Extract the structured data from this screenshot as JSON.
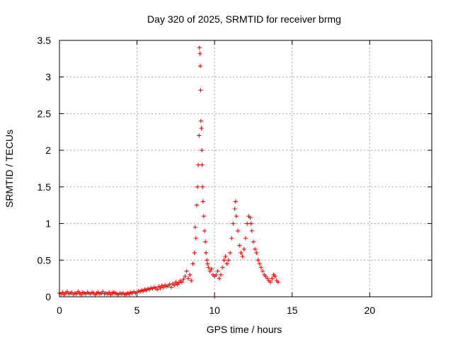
{
  "chart_data": {
    "type": "scatter",
    "title": "Day 320 of 2025, SRMTID for receiver brmg",
    "xlabel": "GPS time / hours",
    "ylabel": "SRMTID / TECUs",
    "xlim": [
      0,
      24
    ],
    "ylim": [
      0,
      3.5
    ],
    "x_ticks": [
      0,
      5,
      10,
      15,
      20
    ],
    "x_tick_labels": [
      "0",
      "5",
      "10",
      "15",
      "20"
    ],
    "y_ticks": [
      0,
      0.5,
      1,
      1.5,
      2,
      2.5,
      3,
      3.5
    ],
    "y_tick_labels": [
      "0",
      "0.5",
      "1",
      "1.5",
      "2",
      "2.5",
      "3",
      "3.5"
    ],
    "grid": true,
    "marker": "+",
    "color": "#ff0000",
    "series": [
      {
        "name": "SRMTID",
        "points": [
          [
            0.0,
            0.05
          ],
          [
            0.1,
            0.04
          ],
          [
            0.2,
            0.06
          ],
          [
            0.3,
            0.03
          ],
          [
            0.4,
            0.05
          ],
          [
            0.5,
            0.07
          ],
          [
            0.6,
            0.04
          ],
          [
            0.7,
            0.05
          ],
          [
            0.8,
            0.06
          ],
          [
            0.9,
            0.03
          ],
          [
            1.0,
            0.05
          ],
          [
            1.1,
            0.04
          ],
          [
            1.2,
            0.07
          ],
          [
            1.3,
            0.05
          ],
          [
            1.4,
            0.03
          ],
          [
            1.5,
            0.06
          ],
          [
            1.6,
            0.05
          ],
          [
            1.7,
            0.04
          ],
          [
            1.8,
            0.06
          ],
          [
            1.9,
            0.05
          ],
          [
            2.0,
            0.04
          ],
          [
            2.1,
            0.06
          ],
          [
            2.2,
            0.05
          ],
          [
            2.3,
            0.03
          ],
          [
            2.4,
            0.05
          ],
          [
            2.5,
            0.06
          ],
          [
            2.6,
            0.04
          ],
          [
            2.7,
            0.05
          ],
          [
            2.8,
            0.07
          ],
          [
            2.9,
            0.04
          ],
          [
            3.0,
            0.05
          ],
          [
            3.1,
            0.04
          ],
          [
            3.2,
            0.06
          ],
          [
            3.3,
            0.03
          ],
          [
            3.4,
            0.05
          ],
          [
            3.5,
            0.06
          ],
          [
            3.6,
            0.05
          ],
          [
            3.7,
            0.04
          ],
          [
            3.8,
            0.03
          ],
          [
            3.9,
            0.05
          ],
          [
            4.0,
            0.04
          ],
          [
            4.1,
            0.05
          ],
          [
            4.2,
            0.03
          ],
          [
            4.3,
            0.04
          ],
          [
            4.4,
            0.05
          ],
          [
            4.5,
            0.04
          ],
          [
            4.6,
            0.06
          ],
          [
            4.7,
            0.05
          ],
          [
            4.8,
            0.07
          ],
          [
            4.9,
            0.05
          ],
          [
            5.0,
            0.06
          ],
          [
            5.1,
            0.08
          ],
          [
            5.2,
            0.07
          ],
          [
            5.3,
            0.09
          ],
          [
            5.4,
            0.08
          ],
          [
            5.5,
            0.1
          ],
          [
            5.6,
            0.09
          ],
          [
            5.7,
            0.11
          ],
          [
            5.8,
            0.1
          ],
          [
            5.9,
            0.12
          ],
          [
            6.0,
            0.11
          ],
          [
            6.1,
            0.13
          ],
          [
            6.2,
            0.12
          ],
          [
            6.3,
            0.1
          ],
          [
            6.4,
            0.14
          ],
          [
            6.5,
            0.12
          ],
          [
            6.6,
            0.15
          ],
          [
            6.7,
            0.13
          ],
          [
            6.8,
            0.16
          ],
          [
            6.9,
            0.14
          ],
          [
            7.0,
            0.15
          ],
          [
            7.1,
            0.17
          ],
          [
            7.2,
            0.13
          ],
          [
            7.3,
            0.18
          ],
          [
            7.4,
            0.16
          ],
          [
            7.5,
            0.2
          ],
          [
            7.6,
            0.17
          ],
          [
            7.7,
            0.19
          ],
          [
            7.8,
            0.22
          ],
          [
            7.9,
            0.2
          ],
          [
            8.0,
            0.24
          ],
          [
            8.1,
            0.28
          ],
          [
            8.2,
            0.35
          ],
          [
            8.3,
            0.25
          ],
          [
            8.4,
            0.3
          ],
          [
            8.5,
            0.22
          ],
          [
            8.6,
            0.45
          ],
          [
            8.7,
            0.6
          ],
          [
            8.75,
            0.95
          ],
          [
            8.8,
            0.8
          ],
          [
            8.85,
            1.25
          ],
          [
            8.9,
            1.5
          ],
          [
            8.95,
            1.8
          ],
          [
            9.0,
            2.2
          ],
          [
            9.02,
            3.4
          ],
          [
            9.05,
            3.32
          ],
          [
            9.08,
            3.15
          ],
          [
            9.1,
            2.82
          ],
          [
            9.12,
            2.4
          ],
          [
            9.15,
            2.3
          ],
          [
            9.18,
            2.0
          ],
          [
            9.2,
            1.8
          ],
          [
            9.22,
            1.5
          ],
          [
            9.25,
            1.3
          ],
          [
            9.3,
            1.1
          ],
          [
            9.35,
            0.9
          ],
          [
            9.4,
            0.75
          ],
          [
            9.45,
            0.6
          ],
          [
            9.5,
            0.5
          ],
          [
            9.55,
            0.45
          ],
          [
            9.6,
            0.4
          ],
          [
            9.7,
            0.35
          ],
          [
            9.8,
            0.38
          ],
          [
            9.9,
            0.3
          ],
          [
            10.0,
            0.28
          ],
          [
            10.0,
            0.0
          ],
          [
            10.1,
            0.3
          ],
          [
            10.2,
            0.35
          ],
          [
            10.3,
            0.25
          ],
          [
            10.4,
            0.3
          ],
          [
            10.5,
            0.4
          ],
          [
            10.6,
            0.5
          ],
          [
            10.7,
            0.55
          ],
          [
            10.8,
            0.45
          ],
          [
            10.9,
            0.5
          ],
          [
            11.0,
            0.6
          ],
          [
            11.1,
            0.8
          ],
          [
            11.2,
            1.0
          ],
          [
            11.3,
            1.2
          ],
          [
            11.35,
            1.3
          ],
          [
            11.4,
            1.1
          ],
          [
            11.5,
            0.9
          ],
          [
            11.6,
            0.7
          ],
          [
            11.7,
            0.6
          ],
          [
            11.8,
            0.55
          ],
          [
            11.9,
            0.65
          ],
          [
            12.0,
            0.8
          ],
          [
            12.1,
            1.0
          ],
          [
            12.2,
            1.1
          ],
          [
            12.3,
            1.08
          ],
          [
            12.35,
            1.0
          ],
          [
            12.4,
            0.9
          ],
          [
            12.5,
            0.75
          ],
          [
            12.6,
            0.65
          ],
          [
            12.7,
            0.6
          ],
          [
            12.8,
            0.5
          ],
          [
            12.9,
            0.45
          ],
          [
            13.0,
            0.4
          ],
          [
            13.1,
            0.35
          ],
          [
            13.2,
            0.3
          ],
          [
            13.3,
            0.28
          ],
          [
            13.4,
            0.25
          ],
          [
            13.5,
            0.22
          ],
          [
            13.6,
            0.2
          ],
          [
            13.7,
            0.25
          ],
          [
            13.8,
            0.3
          ],
          [
            13.9,
            0.28
          ],
          [
            14.0,
            0.22
          ],
          [
            14.1,
            0.2
          ]
        ]
      }
    ]
  }
}
